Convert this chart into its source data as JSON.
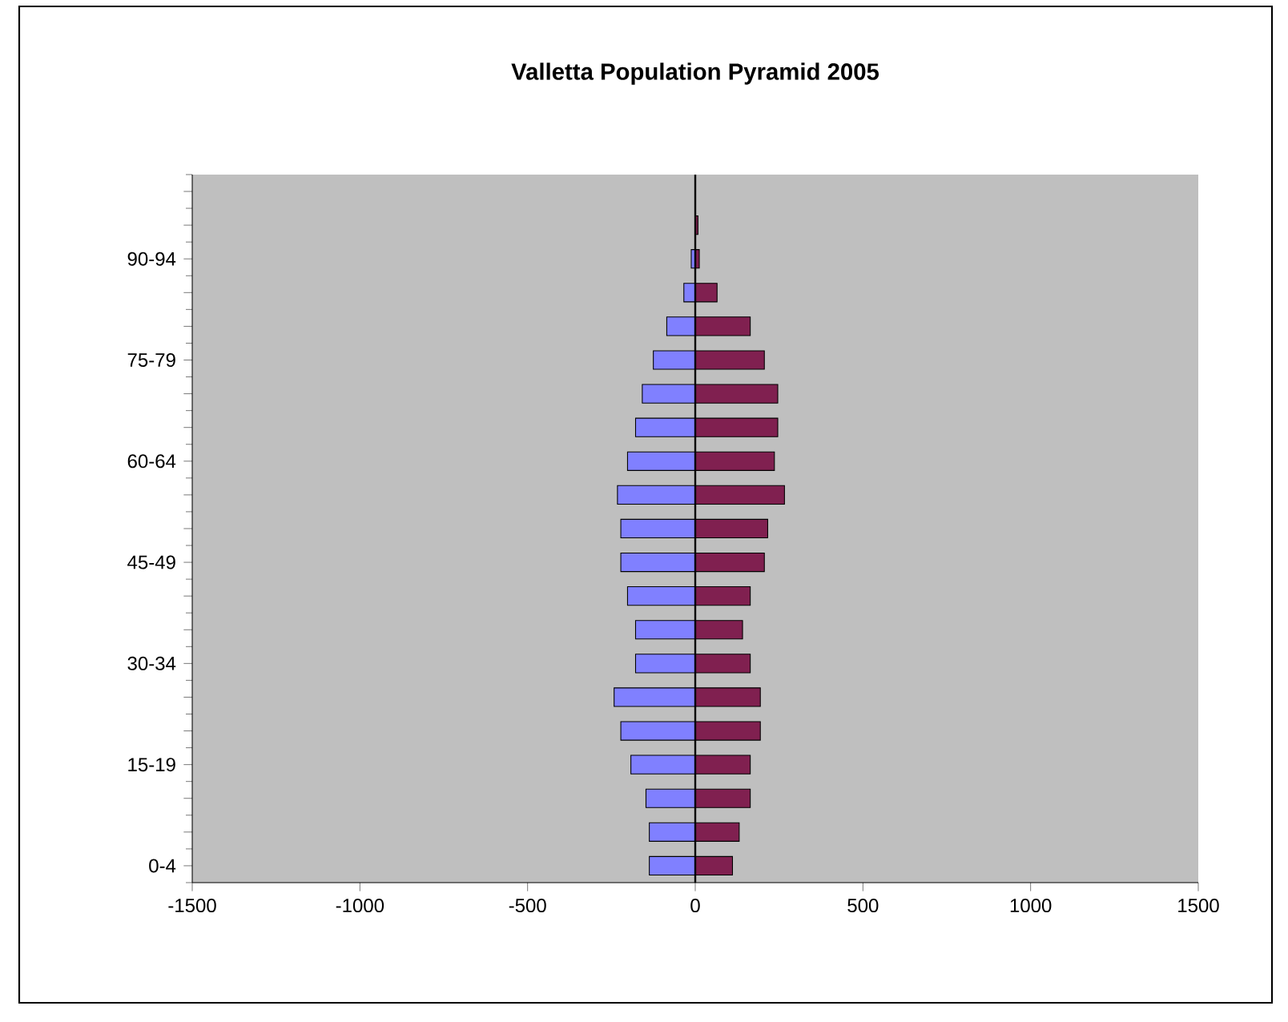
{
  "chart_data": {
    "type": "bar",
    "orientation": "horizontal",
    "stacked": true,
    "title": "Valletta Population Pyramid 2005",
    "categories": [
      null,
      null,
      "90-94",
      null,
      null,
      "75-79",
      null,
      null,
      "60-64",
      null,
      null,
      "45-49",
      null,
      null,
      "30-34",
      null,
      null,
      "15-19",
      null,
      null,
      "0-4"
    ],
    "series": [
      {
        "color": "#8080ff",
        "values": [
          0,
          0,
          -12,
          -34,
          -85,
          -125,
          -158,
          -178,
          -202,
          -232,
          -222,
          -222,
          -202,
          -178,
          -178,
          -242,
          -222,
          -192,
          -147,
          -137,
          -137
        ]
      },
      {
        "color": "#802050",
        "values": [
          0,
          8,
          12,
          65,
          164,
          206,
          246,
          246,
          236,
          266,
          216,
          206,
          164,
          141,
          164,
          194,
          194,
          164,
          164,
          131,
          111
        ]
      }
    ],
    "xlim": [
      -1500,
      1500
    ],
    "xticks": [
      -1500,
      -1000,
      -500,
      0,
      500,
      1000,
      1500
    ],
    "ref_lines": [
      {
        "axis": "x",
        "value": 0,
        "color": "#000000"
      }
    ]
  }
}
